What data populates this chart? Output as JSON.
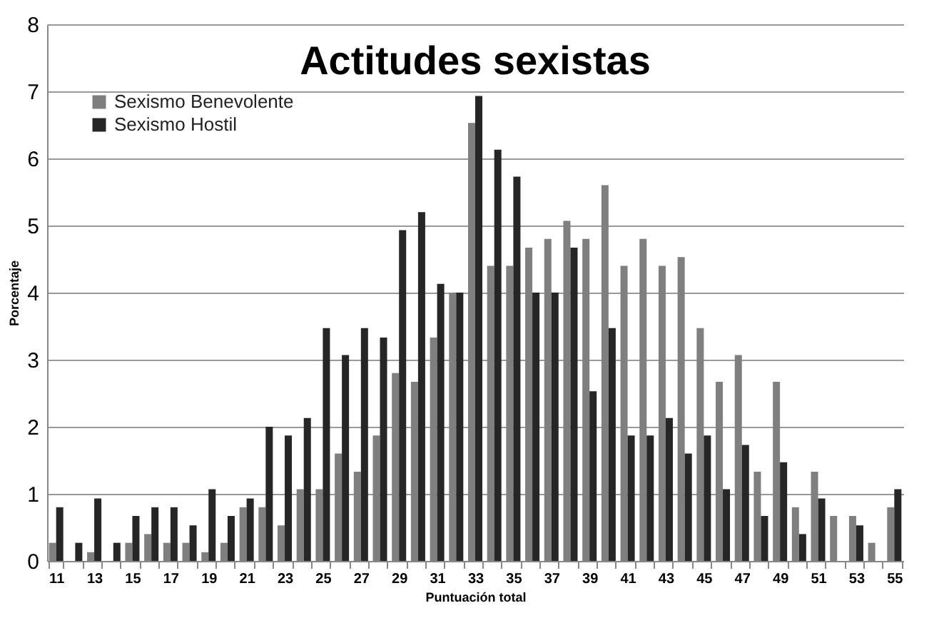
{
  "chart_data": {
    "type": "bar",
    "title": "Actitudes sexistas",
    "xlabel": "Puntuación total",
    "ylabel": "Porcentaje",
    "categories": [
      "11",
      null,
      "13",
      null,
      "15",
      null,
      "17",
      null,
      "19",
      null,
      "21",
      null,
      "23",
      null,
      "25",
      null,
      "27",
      null,
      "29",
      null,
      "31",
      null,
      "33",
      null,
      "35",
      null,
      "37",
      null,
      "39",
      null,
      "41",
      null,
      "43",
      null,
      "45",
      null,
      "47",
      null,
      "49",
      null,
      "51",
      null,
      "53",
      null,
      "55"
    ],
    "series": [
      {
        "name": "Sexismo Benevolente",
        "color": "#7f7f7f",
        "values": [
          0.27,
          0,
          0.13,
          0,
          0.27,
          0.4,
          0.27,
          0.27,
          0.13,
          0.27,
          0.8,
          0.8,
          0.53,
          1.07,
          1.07,
          1.6,
          1.33,
          1.87,
          2.8,
          2.67,
          3.33,
          4.0,
          6.53,
          4.4,
          4.4,
          4.67,
          4.8,
          5.07,
          4.8,
          5.6,
          4.4,
          4.8,
          4.4,
          4.53,
          3.47,
          2.67,
          3.07,
          1.33,
          2.67,
          0.8,
          1.33,
          0.67,
          0.67,
          0.27,
          0.8
        ]
      },
      {
        "name": "Sexismo Hostil",
        "color": "#262626",
        "values": [
          0.8,
          0.27,
          0.93,
          0.27,
          0.67,
          0.8,
          0.8,
          0.53,
          1.07,
          0.67,
          0.93,
          2.0,
          1.87,
          2.13,
          3.47,
          3.07,
          3.47,
          3.33,
          4.93,
          5.2,
          4.13,
          4.0,
          6.93,
          6.13,
          5.73,
          4.0,
          4.0,
          4.67,
          2.53,
          3.47,
          1.87,
          1.87,
          2.13,
          1.6,
          1.87,
          1.07,
          1.73,
          0.67,
          1.47,
          0.4,
          0.93,
          0,
          0.53,
          0,
          1.07
        ]
      }
    ],
    "ylim": [
      0,
      8
    ],
    "yticks": [
      0,
      1,
      2,
      3,
      4,
      5,
      6,
      7,
      8
    ],
    "grid": "y",
    "legend": "top left"
  }
}
